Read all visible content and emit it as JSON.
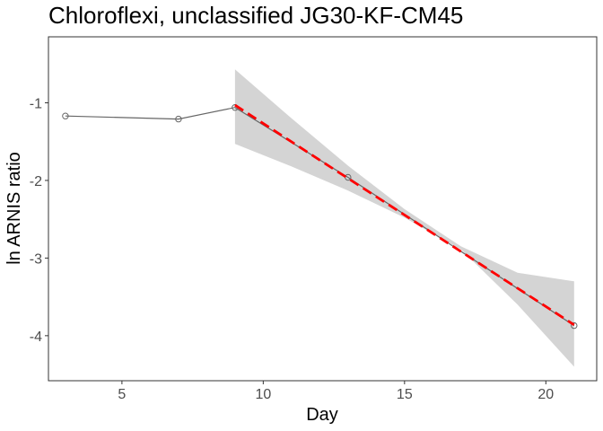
{
  "chart_data": {
    "type": "line",
    "title": "Chloroflexi, unclassified JG30-KF-CM45",
    "xlabel": "Day",
    "ylabel": "ln ARNIS ratio",
    "xlim": [
      2.4,
      21.8
    ],
    "ylim": [
      -4.58,
      -0.15
    ],
    "x_ticks": [
      5,
      10,
      15,
      20
    ],
    "y_ticks": [
      -1,
      -2,
      -3,
      -4
    ],
    "grid": false,
    "legend": "none",
    "series": [
      {
        "style": "solid line with open circle markers",
        "color": "#666666",
        "x": [
          3,
          7,
          9,
          13,
          21
        ],
        "y": [
          -1.17,
          -1.21,
          -1.06,
          -1.96,
          -3.87
        ]
      }
    ],
    "fit": {
      "style": "dashed regression line",
      "color": "#ff0000",
      "x": [
        9,
        21
      ],
      "y": [
        -1.03,
        -3.86
      ]
    },
    "confidence_band": {
      "color": "#d4d4d4",
      "x": [
        9,
        11,
        13,
        15,
        17,
        19,
        21
      ],
      "upper": [
        -0.57,
        -1.2,
        -1.81,
        -2.37,
        -2.85,
        -3.19,
        -3.3
      ],
      "lower": [
        -1.53,
        -1.82,
        -2.13,
        -2.48,
        -2.89,
        -3.6,
        -4.4
      ]
    }
  }
}
